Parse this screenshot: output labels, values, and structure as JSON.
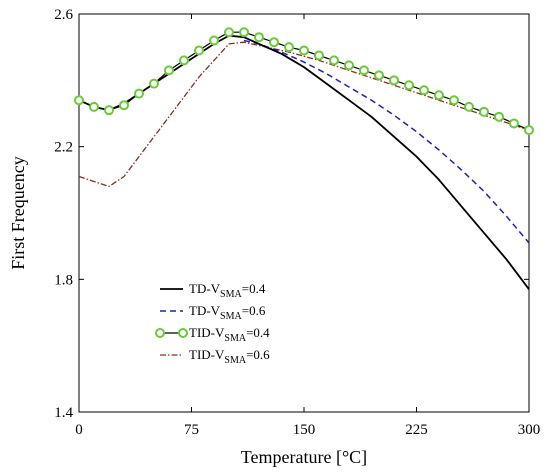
{
  "chart_data": {
    "type": "line",
    "xlabel": "Temperature [°C]",
    "ylabel": "First Frequency",
    "xlim": [
      0,
      300
    ],
    "ylim": [
      1.4,
      2.6
    ],
    "xticks": [
      "0",
      "75",
      "150",
      "225",
      "300"
    ],
    "yticks": [
      "1.4",
      "1.8",
      "2.2",
      "2.6"
    ],
    "grid": false,
    "legend_position": "bottom-left",
    "colors": {
      "td_04": "#000000",
      "td_06": "#1f1fb8",
      "tid_04_line": "#000000",
      "tid_04_marker_edge": "#66cc33",
      "tid_06": "#8b2e1a"
    },
    "series": [
      {
        "name": "TD-V_SMA=0.4",
        "legend": {
          "pre": "TD-V",
          "sub": "SMA",
          "post": "=0.4"
        },
        "style": "solid",
        "x": [
          0,
          10,
          20,
          30,
          40,
          50,
          60,
          70,
          80,
          90,
          100,
          110,
          120,
          135,
          150,
          165,
          180,
          195,
          210,
          225,
          240,
          255,
          270,
          285,
          300
        ],
        "y": [
          2.34,
          2.32,
          2.31,
          2.33,
          2.36,
          2.39,
          2.42,
          2.45,
          2.48,
          2.51,
          2.535,
          2.53,
          2.51,
          2.48,
          2.44,
          2.39,
          2.34,
          2.29,
          2.23,
          2.17,
          2.1,
          2.02,
          1.94,
          1.86,
          1.77
        ]
      },
      {
        "name": "TD-V_SMA=0.6",
        "legend": {
          "pre": "TD-V",
          "sub": "SMA",
          "post": "=0.6"
        },
        "style": "dashed",
        "x": [
          110,
          120,
          135,
          150,
          165,
          180,
          195,
          210,
          225,
          240,
          255,
          270,
          285,
          300
        ],
        "y": [
          2.52,
          2.51,
          2.485,
          2.455,
          2.42,
          2.38,
          2.34,
          2.295,
          2.245,
          2.19,
          2.13,
          2.065,
          1.99,
          1.91
        ]
      },
      {
        "name": "TID-V_SMA=0.4",
        "legend": {
          "pre": "TID-V",
          "sub": "SMA",
          "post": "=0.4"
        },
        "style": "solid-markers",
        "x": [
          0,
          10,
          20,
          30,
          40,
          50,
          60,
          70,
          80,
          90,
          100,
          110,
          120,
          130,
          140,
          150,
          160,
          170,
          180,
          190,
          200,
          210,
          220,
          230,
          240,
          250,
          260,
          270,
          280,
          290,
          300
        ],
        "y": [
          2.34,
          2.32,
          2.31,
          2.325,
          2.36,
          2.39,
          2.43,
          2.46,
          2.49,
          2.52,
          2.545,
          2.545,
          2.53,
          2.515,
          2.5,
          2.49,
          2.475,
          2.46,
          2.445,
          2.43,
          2.415,
          2.4,
          2.385,
          2.37,
          2.355,
          2.34,
          2.32,
          2.305,
          2.29,
          2.27,
          2.25
        ]
      },
      {
        "name": "TID-V_SMA=0.6",
        "legend": {
          "pre": "TID-V",
          "sub": "SMA",
          "post": "=0.6"
        },
        "style": "dashdot",
        "x": [
          0,
          10,
          20,
          30,
          40,
          50,
          60,
          70,
          80,
          90,
          100,
          110,
          120,
          140,
          160,
          180,
          200,
          220,
          240,
          260,
          280,
          300
        ],
        "y": [
          2.11,
          2.095,
          2.08,
          2.11,
          2.17,
          2.23,
          2.29,
          2.35,
          2.41,
          2.46,
          2.51,
          2.515,
          2.505,
          2.485,
          2.46,
          2.43,
          2.4,
          2.37,
          2.34,
          2.31,
          2.28,
          2.25
        ]
      }
    ]
  }
}
